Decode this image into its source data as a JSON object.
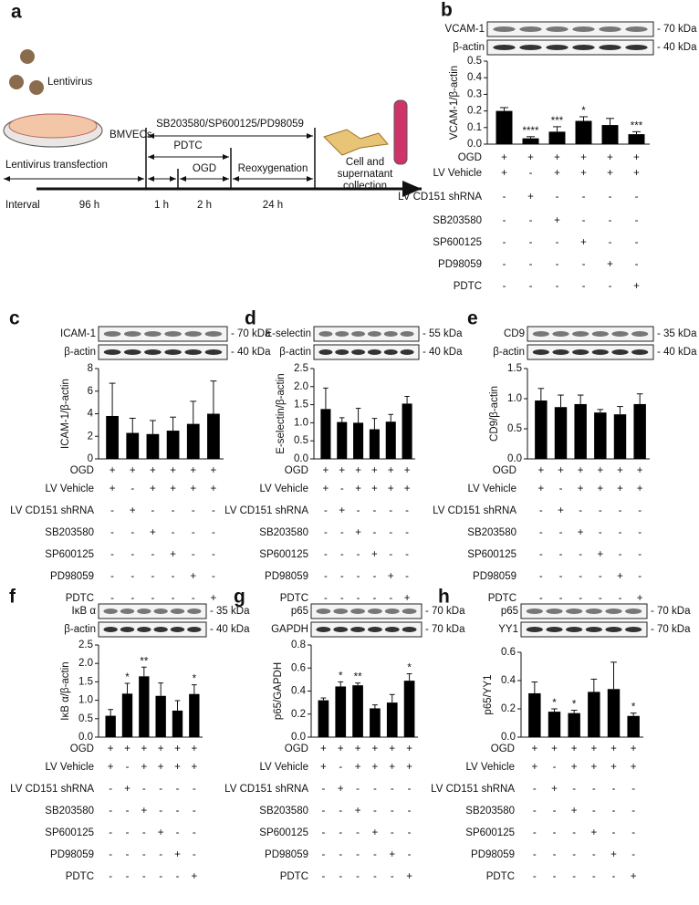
{
  "schematic": {
    "panel": "a",
    "lentivirus": "Lentivirus",
    "cells": "BMVECs",
    "transfection": "Lentivirus transfection",
    "inhibitors": "SB203580/SP600125/PD98059",
    "pdtc": "PDTC",
    "ogd": "OGD",
    "reoxygenation": "Reoxygenation",
    "collection": [
      "Cell and",
      "supernatant",
      "collection"
    ],
    "interval": "Interval",
    "durations": [
      "96 h",
      "1 h",
      "2 h",
      "24 h"
    ]
  },
  "treatments": {
    "rows": [
      "OGD",
      "LV Vehicle",
      "LV CD151 shRNA",
      "SB203580",
      "SP600125",
      "PD98059",
      "PDTC"
    ],
    "signs": [
      [
        "+",
        "+",
        "+",
        "+",
        "+",
        "+"
      ],
      [
        "+",
        "-",
        "+",
        "+",
        "+",
        "+"
      ],
      [
        "-",
        "+",
        "-",
        "-",
        "-",
        "-"
      ],
      [
        "-",
        "-",
        "+",
        "-",
        "-",
        "-"
      ],
      [
        "-",
        "-",
        "-",
        "+",
        "-",
        "-"
      ],
      [
        "-",
        "-",
        "-",
        "-",
        "+",
        "-"
      ],
      [
        "-",
        "-",
        "-",
        "-",
        "-",
        "+"
      ]
    ]
  },
  "chart_data": [
    {
      "type": "bar",
      "panel": "b",
      "blots": [
        {
          "label": "VCAM-1",
          "size": "- 70 kDa"
        },
        {
          "label": "β-actin",
          "size": "- 40 kDa"
        }
      ],
      "ylabel": "VCAM-1/β-actin",
      "ylim": [
        0,
        0.5
      ],
      "yticks": [
        {
          "value": 0,
          "label": "0.0"
        },
        0.1,
        0.2,
        0.3,
        0.4,
        0.5
      ],
      "color": "#000000",
      "categories": [
        null,
        null,
        null,
        null,
        null,
        null
      ],
      "values": [
        0.2,
        0.035,
        0.075,
        0.14,
        0.115,
        0.06
      ],
      "errors": [
        0.02,
        0.01,
        0.03,
        0.025,
        0.04,
        0.015
      ],
      "annotations": [
        null,
        "****",
        "***",
        "*",
        null,
        "***"
      ]
    },
    {
      "type": "bar",
      "panel": "c",
      "blots": [
        {
          "label": "ICAM-1",
          "size": "- 70 kDa"
        },
        {
          "label": "β-actin",
          "size": "- 40 kDa"
        }
      ],
      "ylabel": "ICAM-1/β-actin",
      "ylim": [
        0,
        8
      ],
      "yticks": [
        0,
        2,
        4,
        6,
        8
      ],
      "color": "#000000",
      "categories": [
        null,
        null,
        null,
        null,
        null,
        null
      ],
      "values": [
        3.8,
        2.3,
        2.2,
        2.5,
        3.1,
        4.0
      ],
      "errors": [
        2.9,
        1.3,
        1.2,
        1.2,
        2.0,
        2.9
      ],
      "annotations": [
        null,
        null,
        null,
        null,
        null,
        null
      ]
    },
    {
      "type": "bar",
      "panel": "d",
      "blots": [
        {
          "label": "E-selectin",
          "size": "- 55 kDa"
        },
        {
          "label": "β-actin",
          "size": "- 40 kDa"
        }
      ],
      "ylabel": "E-selectin/β-actin",
      "ylim": [
        0,
        2.5
      ],
      "yticks": [
        {
          "value": 0,
          "label": "0.0"
        },
        0.5,
        {
          "value": 1,
          "label": "1.0"
        },
        1.5,
        {
          "value": 2,
          "label": "2.0"
        },
        2.5
      ],
      "color": "#000000",
      "categories": [
        null,
        null,
        null,
        null,
        null,
        null
      ],
      "values": [
        1.38,
        1.02,
        1.0,
        0.82,
        1.03,
        1.53
      ],
      "errors": [
        0.58,
        0.12,
        0.4,
        0.3,
        0.2,
        0.2
      ],
      "annotations": [
        null,
        null,
        null,
        null,
        null,
        null
      ]
    },
    {
      "type": "bar",
      "panel": "e",
      "blots": [
        {
          "label": "CD9",
          "size": "- 35 kDa"
        },
        {
          "label": "β-actin",
          "size": "- 40 kDa"
        }
      ],
      "ylabel": "CD9/β-actin",
      "ylim": [
        0,
        1.5
      ],
      "yticks": [
        {
          "value": 0,
          "label": "0.0"
        },
        0.5,
        {
          "value": 1,
          "label": "1.0"
        },
        1.5
      ],
      "color": "#000000",
      "categories": [
        null,
        null,
        null,
        null,
        null,
        null
      ],
      "values": [
        0.97,
        0.86,
        0.91,
        0.77,
        0.74,
        0.91
      ],
      "errors": [
        0.2,
        0.2,
        0.15,
        0.05,
        0.13,
        0.17
      ],
      "annotations": [
        null,
        null,
        null,
        null,
        null,
        null
      ]
    },
    {
      "type": "bar",
      "panel": "f",
      "blots": [
        {
          "label": "IκB α",
          "size": "- 35 kDa"
        },
        {
          "label": "β-actin",
          "size": "- 40 kDa"
        }
      ],
      "ylabel": "IκB α/β-actin",
      "ylim": [
        0,
        2.5
      ],
      "yticks": [
        {
          "value": 0,
          "label": "0.0"
        },
        0.5,
        {
          "value": 1,
          "label": "1.0"
        },
        1.5,
        {
          "value": 2,
          "label": "2.0"
        },
        2.5
      ],
      "color": "#000000",
      "categories": [
        null,
        null,
        null,
        null,
        null,
        null
      ],
      "values": [
        0.58,
        1.18,
        1.65,
        1.12,
        0.72,
        1.17
      ],
      "errors": [
        0.17,
        0.28,
        0.25,
        0.35,
        0.27,
        0.25
      ],
      "annotations": [
        null,
        "*",
        "**",
        null,
        null,
        "*"
      ]
    },
    {
      "type": "bar",
      "panel": "g",
      "blots": [
        {
          "label": "p65",
          "size": "- 70 kDa"
        },
        {
          "label": "GAPDH",
          "size": "- 70 kDa"
        }
      ],
      "ylabel": "p65/GAPDH",
      "ylim": [
        0,
        0.8
      ],
      "yticks": [
        {
          "value": 0,
          "label": "0.0"
        },
        0.2,
        0.4,
        0.6,
        0.8
      ],
      "color": "#000000",
      "categories": [
        null,
        null,
        null,
        null,
        null,
        null
      ],
      "values": [
        0.32,
        0.44,
        0.45,
        0.25,
        0.3,
        0.49
      ],
      "errors": [
        0.02,
        0.04,
        0.02,
        0.03,
        0.07,
        0.06
      ],
      "annotations": [
        null,
        "*",
        "**",
        null,
        null,
        "*"
      ]
    },
    {
      "type": "bar",
      "panel": "h",
      "blots": [
        {
          "label": "p65",
          "size": "- 70 kDa"
        },
        {
          "label": "YY1",
          "size": "- 70 kDa"
        }
      ],
      "ylabel": "p65/YY1",
      "ylim": [
        0,
        0.6
      ],
      "yticks": [
        {
          "value": 0,
          "label": "0.0"
        },
        0.2,
        0.4,
        0.6
      ],
      "color": "#000000",
      "categories": [
        null,
        null,
        null,
        null,
        null,
        null
      ],
      "values": [
        0.31,
        0.18,
        0.17,
        0.32,
        0.34,
        0.15
      ],
      "errors": [
        0.08,
        0.02,
        0.02,
        0.09,
        0.19,
        0.02
      ],
      "annotations": [
        null,
        "*",
        "*",
        null,
        null,
        "*"
      ]
    }
  ]
}
